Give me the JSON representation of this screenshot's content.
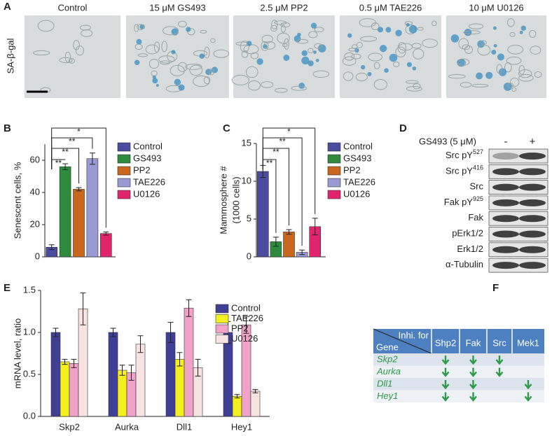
{
  "panel_labels": [
    "A",
    "B",
    "C",
    "D",
    "E",
    "F"
  ],
  "panel_a": {
    "titles": [
      "Control",
      "15 μM GS493",
      "2.5 μM PP2",
      "0.5 μM TAE226",
      "10 μM U0126"
    ],
    "ylabel": "SA-β-gal"
  },
  "chart_data": [
    {
      "type": "bar",
      "ylabel": "Senescent cells, %",
      "categories": [
        "Control",
        "GS493",
        "PP2",
        "TAE226",
        "U0126"
      ],
      "values": [
        6,
        56,
        42,
        61,
        14.5
      ],
      "errors": [
        1.5,
        1.8,
        1,
        3.5,
        1
      ],
      "colors": [
        "#4b4ba0",
        "#2e8b3e",
        "#c8661e",
        "#9a9ad2",
        "#e0246e"
      ],
      "ylim": [
        0,
        70
      ],
      "yticks": [
        0,
        20,
        40,
        60
      ],
      "brackets": [
        {
          "label": "*",
          "between": [
            "Control",
            "U0126"
          ]
        },
        {
          "label": "**",
          "between": [
            "Control",
            "TAE226"
          ]
        },
        {
          "label": "**",
          "between": [
            "Control",
            "PP2"
          ]
        },
        {
          "label": "**",
          "between": [
            "Control",
            "GS493"
          ]
        }
      ]
    },
    {
      "type": "bar",
      "ylabel": [
        "Mammosphere #",
        "(1000 cells)"
      ],
      "categories": [
        "Control",
        "GS493",
        "PP2",
        "TAE226",
        "U0126"
      ],
      "values": [
        11.3,
        2,
        3.3,
        0.6,
        4
      ],
      "errors": [
        0.8,
        0.6,
        0.3,
        0.3,
        1.1
      ],
      "colors": [
        "#4b4ba0",
        "#2e8b3e",
        "#c8661e",
        "#9a9ad2",
        "#e0246e"
      ],
      "ylim": [
        0,
        15
      ],
      "yticks": [
        0,
        5,
        10,
        15
      ],
      "brackets": [
        {
          "label": "*",
          "between": [
            "Control",
            "U0126"
          ]
        },
        {
          "label": "**",
          "between": [
            "Control",
            "TAE226"
          ]
        },
        {
          "label": "**",
          "between": [
            "Control",
            "PP2"
          ]
        },
        {
          "label": "**",
          "between": [
            "Control",
            "GS493"
          ]
        }
      ]
    },
    {
      "type": "bar",
      "ylabel": "mRNA level, ratio",
      "categories": [
        "Skp2",
        "Aurka",
        "Dll1",
        "Hey1"
      ],
      "series": [
        {
          "name": "Control",
          "color": "#3f3f96",
          "values": [
            1.0,
            1.0,
            1.0,
            1.0
          ],
          "errors": [
            0.05,
            0.05,
            0.12,
            0.13
          ]
        },
        {
          "name": "TAE226",
          "color": "#f4ef1e",
          "values": [
            0.65,
            0.55,
            0.68,
            0.24
          ],
          "errors": [
            0.03,
            0.06,
            0.08,
            0.02
          ]
        },
        {
          "name": "PP2",
          "color": "#f0a2c8",
          "values": [
            0.63,
            0.52,
            1.29,
            1.09
          ],
          "errors": [
            0.05,
            0.09,
            0.1,
            0.1
          ]
        },
        {
          "name": "U0126",
          "color": "#f9e2e2",
          "values": [
            1.28,
            0.86,
            0.58,
            0.3
          ],
          "errors": [
            0.19,
            0.1,
            0.1,
            0.02
          ]
        }
      ],
      "ylim": [
        0,
        1.5
      ],
      "yticks": [
        {
          "value": 0,
          "label": "0.0"
        },
        {
          "value": 0.5,
          "label": "0.5"
        },
        {
          "value": 1,
          "label": "1.0"
        },
        {
          "value": 1.5,
          "label": "1.5"
        }
      ]
    }
  ],
  "blot": {
    "treatment": "GS493 (5 μM)",
    "lanes": [
      "-",
      "+"
    ],
    "rows": [
      {
        "label": "Src pY",
        "sup": "527"
      },
      {
        "label": "Src pY",
        "sup": "416"
      },
      {
        "label": "Src"
      },
      {
        "label": "Fak pY",
        "sup": "925"
      },
      {
        "label": "Fak"
      },
      {
        "label": "pErk1/2"
      },
      {
        "label": "Erk1/2"
      },
      {
        "label": "α-Tubulin"
      }
    ]
  },
  "table": {
    "corner_top": "Inhi. for",
    "corner_bottom": "Gene",
    "columns": [
      "Shp2",
      "Fak",
      "Src",
      "Mek1"
    ],
    "rows": [
      {
        "gene": "Skp2",
        "inhibited": [
          true,
          true,
          true,
          false
        ]
      },
      {
        "gene": "Aurka",
        "inhibited": [
          true,
          true,
          true,
          false
        ]
      },
      {
        "gene": "Dll1",
        "inhibited": [
          true,
          true,
          false,
          true
        ]
      },
      {
        "gene": "Hey1",
        "inhibited": [
          true,
          true,
          false,
          true
        ]
      }
    ]
  }
}
